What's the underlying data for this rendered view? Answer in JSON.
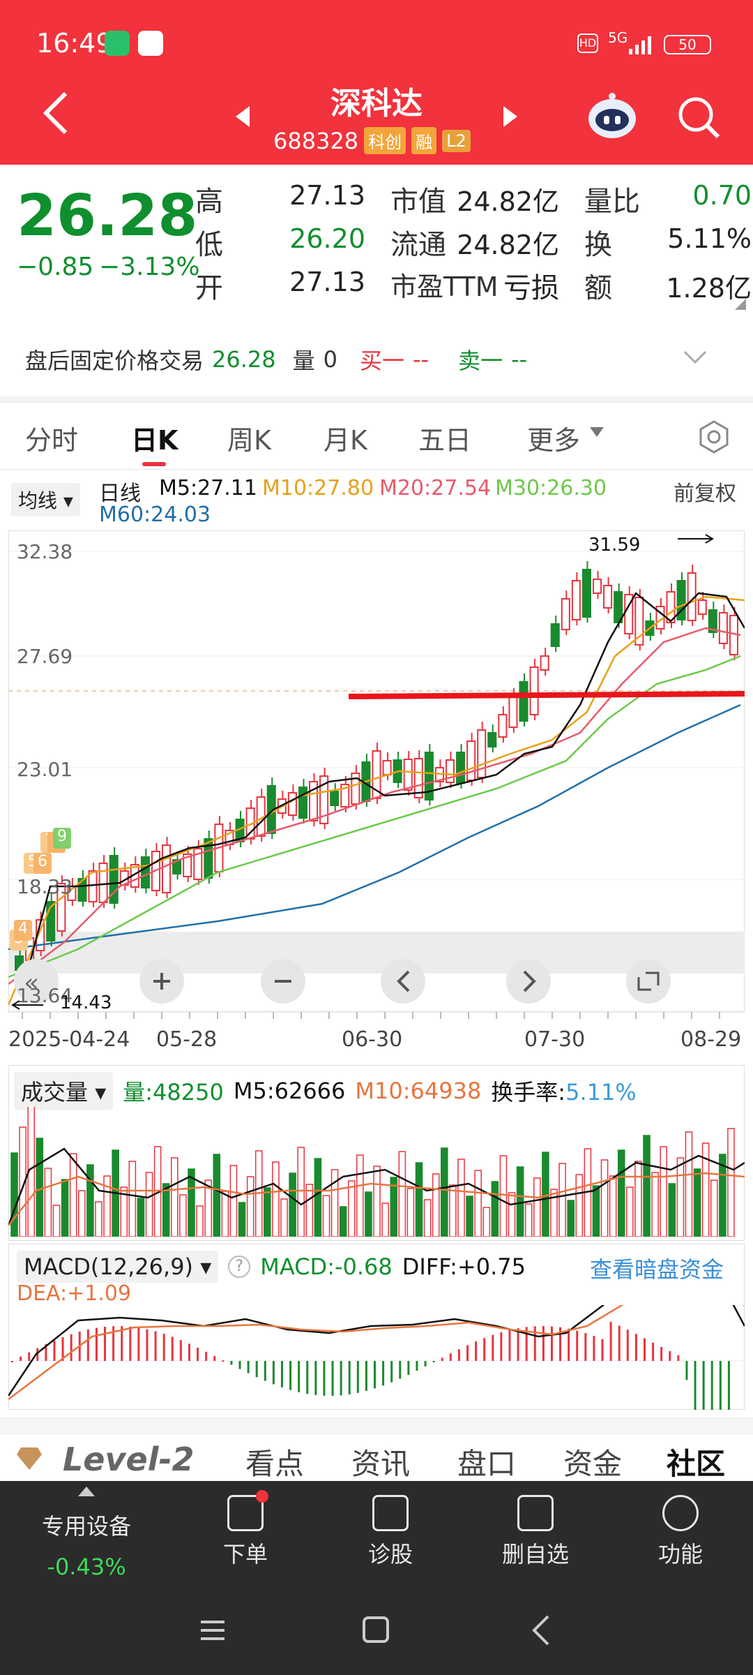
{
  "status": {
    "time": "16:49",
    "network": "5G",
    "battery": "50"
  },
  "header": {
    "title": "深科达",
    "code": "688328",
    "tags": [
      "科创",
      "融",
      "L2"
    ]
  },
  "quote": {
    "price": "26.28",
    "change": "−0.85",
    "change_pct": "−3.13%",
    "high_label": "高",
    "high": "27.13",
    "low_label": "低",
    "low": "26.20",
    "open_label": "开",
    "open": "27.13",
    "mktcap_label": "市值",
    "mktcap": "24.82亿",
    "float_label": "流通",
    "float": "24.82亿",
    "pe_label": "市盈TTM",
    "pe": "亏损",
    "vr_label": "量比",
    "vr": "0.70",
    "turnover_label": "换",
    "turnover": "5.11%",
    "amount_label": "额",
    "amount": "1.28亿"
  },
  "after_hours": {
    "label": "盘后固定价格交易",
    "price": "26.28",
    "vol_label": "量",
    "vol": "0",
    "buy_label": "买一",
    "buy": "--",
    "sell_label": "卖一",
    "sell": "--"
  },
  "tabs": [
    "分时",
    "日K",
    "周K",
    "月K",
    "五日",
    "更多"
  ],
  "ma": {
    "selector": "均线",
    "period": "日线",
    "m5": "M5:27.11",
    "m10": "M10:27.80",
    "m20": "M20:27.54",
    "m30": "M30:26.30",
    "m60": "M60:24.03",
    "adjust": "前复权",
    "colors": {
      "m5": "#111111",
      "m10": "#e8a019",
      "m20": "#e8596b",
      "m30": "#6cc94a",
      "m60": "#1f6fa8"
    }
  },
  "chart": {
    "y_ticks": [
      "32.38",
      "27.69",
      "23.01",
      "18.33",
      "13.64"
    ],
    "max_label": "31.59",
    "min_label": "14.43",
    "dates": [
      "2025-04-24",
      "05-28",
      "06-30",
      "07-30",
      "08-29"
    ],
    "markers": [
      "3",
      "4",
      "5",
      "6",
      "7",
      "8",
      "9"
    ]
  },
  "volume": {
    "selector": "成交量",
    "vol": "量:48250",
    "m5": "M5:62666",
    "m10": "M10:64938",
    "turnover_label": "换手率:",
    "turnover": "5.11%"
  },
  "macd": {
    "selector": "MACD(12,26,9)",
    "macd": "MACD:-0.68",
    "diff": "DIFF:+0.75",
    "dea": "DEA:+1.09",
    "link": "查看暗盘资金"
  },
  "bottom_tabs": [
    "Level-2",
    "看点",
    "资讯",
    "盘口",
    "资金",
    "社区"
  ],
  "bottom_bar": {
    "device_label": "专用设备",
    "device_change": "-0.43%",
    "order": "下单",
    "diagnose": "诊股",
    "remove_fav": "删自选",
    "functions": "功能"
  }
}
